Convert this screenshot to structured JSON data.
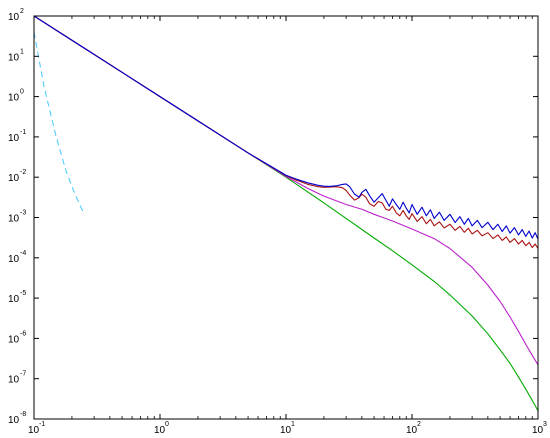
{
  "chart_data": {
    "type": "line",
    "title": "",
    "xlabel": "",
    "ylabel": "",
    "x_scale": "log",
    "y_scale": "log",
    "xlim": [
      0.1,
      1000
    ],
    "ylim": [
      1e-08,
      100
    ],
    "grid": false,
    "x_ticks": [
      {
        "value": 0.1,
        "base": "10",
        "exp": "-1"
      },
      {
        "value": 1,
        "base": "10",
        "exp": "0"
      },
      {
        "value": 10,
        "base": "10",
        "exp": "1"
      },
      {
        "value": 100,
        "base": "10",
        "exp": "2"
      },
      {
        "value": 1000,
        "base": "10",
        "exp": "3"
      }
    ],
    "y_ticks": [
      {
        "value": 100,
        "base": "10",
        "exp": "2"
      },
      {
        "value": 10,
        "base": "10",
        "exp": "1"
      },
      {
        "value": 1,
        "base": "10",
        "exp": "0"
      },
      {
        "value": 0.1,
        "base": "10",
        "exp": "-1"
      },
      {
        "value": 0.01,
        "base": "10",
        "exp": "-2"
      },
      {
        "value": 0.001,
        "base": "10",
        "exp": "-3"
      },
      {
        "value": 0.0001,
        "base": "10",
        "exp": "-4"
      },
      {
        "value": 1e-05,
        "base": "10",
        "exp": "-5"
      },
      {
        "value": 1e-06,
        "base": "10",
        "exp": "-6"
      },
      {
        "value": 1e-07,
        "base": "10",
        "exp": "-7"
      },
      {
        "value": 1e-08,
        "base": "10",
        "exp": "-8"
      }
    ],
    "series": [
      {
        "color": "#00aa00",
        "x": [
          0.1,
          0.2,
          0.5,
          1,
          2,
          5,
          10,
          20,
          30,
          50,
          70,
          100,
          150,
          200,
          300,
          400,
          500,
          600,
          700,
          800,
          900,
          1000
        ],
        "y": [
          100,
          25,
          4,
          1,
          0.25,
          0.04,
          0.01,
          0.0023,
          0.00095,
          0.00031,
          0.00015,
          6.7e-05,
          2.6e-05,
          1.2e-05,
          3.6e-06,
          1.3e-06,
          5.2e-07,
          2.4e-07,
          1.1e-07,
          5.5e-08,
          2.9e-08,
          1.6e-08
        ]
      },
      {
        "color": "#bb22cc",
        "x": [
          0.1,
          0.2,
          0.5,
          1,
          2,
          5,
          10,
          15,
          20,
          30,
          40,
          50,
          70,
          100,
          150,
          200,
          300,
          400,
          500,
          600,
          700,
          800,
          900,
          1000
        ],
        "y": [
          100,
          25,
          4,
          1,
          0.25,
          0.04,
          0.0105,
          0.0052,
          0.0034,
          0.0021,
          0.0016,
          0.0012,
          0.00082,
          0.00052,
          0.0003,
          0.00017,
          5.8e-05,
          2.1e-05,
          8.3e-06,
          3.4e-06,
          1.5e-06,
          7.1e-07,
          3.8e-07,
          2.2e-07
        ]
      },
      {
        "color": "#aa1111",
        "x": [
          0.1,
          0.2,
          0.5,
          1,
          2,
          5,
          10,
          12,
          15,
          18,
          20,
          22,
          25,
          28,
          30,
          32,
          35,
          38,
          40,
          43,
          46,
          50,
          54,
          58,
          62,
          66,
          70,
          75,
          80,
          85,
          90,
          95,
          100,
          110,
          120,
          130,
          140,
          150,
          165,
          180,
          200,
          220,
          240,
          260,
          280,
          300,
          330,
          360,
          400,
          440,
          480,
          520,
          560,
          600,
          650,
          700,
          750,
          800,
          850,
          900,
          950,
          1000
        ],
        "y": [
          100,
          25,
          4,
          1,
          0.25,
          0.04,
          0.011,
          0.0085,
          0.0066,
          0.0058,
          0.0056,
          0.0057,
          0.0058,
          0.0055,
          0.0047,
          0.0036,
          0.0027,
          0.0031,
          0.0038,
          0.0032,
          0.0022,
          0.0019,
          0.0025,
          0.0023,
          0.0016,
          0.0015,
          0.0019,
          0.0013,
          0.0011,
          0.0015,
          0.0011,
          0.0009,
          0.00125,
          0.0008,
          0.00105,
          0.0007,
          0.0009,
          0.00062,
          0.00078,
          0.00055,
          0.00068,
          0.00048,
          0.0006,
          0.00043,
          0.00054,
          0.00039,
          0.00048,
          0.00035,
          0.00042,
          0.0003,
          0.00037,
          0.00027,
          0.00033,
          0.00024,
          0.0003,
          0.00022,
          0.00027,
          0.0002,
          0.00024,
          0.00018,
          0.00022,
          0.00017
        ]
      },
      {
        "color": "#0000cc",
        "x": [
          0.1,
          0.2,
          0.5,
          1,
          2,
          5,
          10,
          12,
          15,
          18,
          20,
          22,
          25,
          28,
          30,
          32,
          35,
          38,
          40,
          43,
          46,
          50,
          54,
          58,
          62,
          66,
          70,
          75,
          80,
          85,
          90,
          95,
          100,
          110,
          120,
          130,
          140,
          150,
          165,
          180,
          200,
          220,
          240,
          260,
          280,
          300,
          330,
          360,
          400,
          440,
          480,
          520,
          560,
          600,
          650,
          700,
          750,
          800,
          850,
          900,
          950,
          1000
        ],
        "y": [
          100,
          25,
          4,
          1,
          0.25,
          0.04,
          0.0112,
          0.009,
          0.0072,
          0.0063,
          0.006,
          0.0059,
          0.0061,
          0.0066,
          0.0068,
          0.0058,
          0.0038,
          0.0032,
          0.0042,
          0.005,
          0.0035,
          0.0024,
          0.0031,
          0.0039,
          0.0027,
          0.0019,
          0.0029,
          0.0021,
          0.0016,
          0.0024,
          0.0017,
          0.0013,
          0.0021,
          0.0012,
          0.0018,
          0.0011,
          0.00155,
          0.00095,
          0.00135,
          0.00085,
          0.0012,
          0.00075,
          0.00105,
          0.00068,
          0.00095,
          0.00062,
          0.00085,
          0.00056,
          0.00076,
          0.0005,
          0.00068,
          0.00045,
          0.00062,
          0.00041,
          0.00056,
          0.00037,
          0.0005,
          0.00034,
          0.00046,
          0.00031,
          0.00042,
          0.00029
        ]
      },
      {
        "color": "#55ccff",
        "style": "dashed",
        "x": [
          0.1,
          0.12,
          0.15,
          0.18,
          0.21,
          0.25
        ],
        "y": [
          40,
          1.8,
          0.1,
          0.014,
          0.004,
          0.0012
        ]
      }
    ]
  }
}
